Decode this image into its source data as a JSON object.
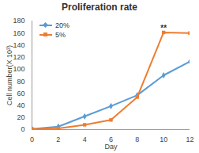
{
  "chart_data": {
    "type": "line",
    "title": "Proliferation rate",
    "x_label": "Day",
    "y_label": "Cell number(X 10³)",
    "x": [
      0,
      2,
      4,
      6,
      8,
      10,
      12
    ],
    "series": [
      {
        "name": "20%",
        "color": "#5b9bd5",
        "marker": "diamond",
        "values": [
          1,
          5,
          22,
          39,
          57,
          90,
          113
        ]
      },
      {
        "name": "5%",
        "color": "#ed7d31",
        "marker": "square",
        "values": [
          1,
          2,
          8,
          16,
          54,
          161,
          160
        ]
      }
    ],
    "xlim": [
      0,
      12
    ],
    "xticks": [
      0,
      2,
      4,
      6,
      8,
      10,
      12
    ],
    "ylim": [
      0,
      180
    ],
    "yticks": [
      0,
      20,
      40,
      60,
      80,
      100,
      120,
      140,
      160,
      180
    ],
    "grid": false,
    "legend": "top-left",
    "annotations": [
      {
        "text": "**",
        "x": 10,
        "y": 168
      }
    ]
  }
}
